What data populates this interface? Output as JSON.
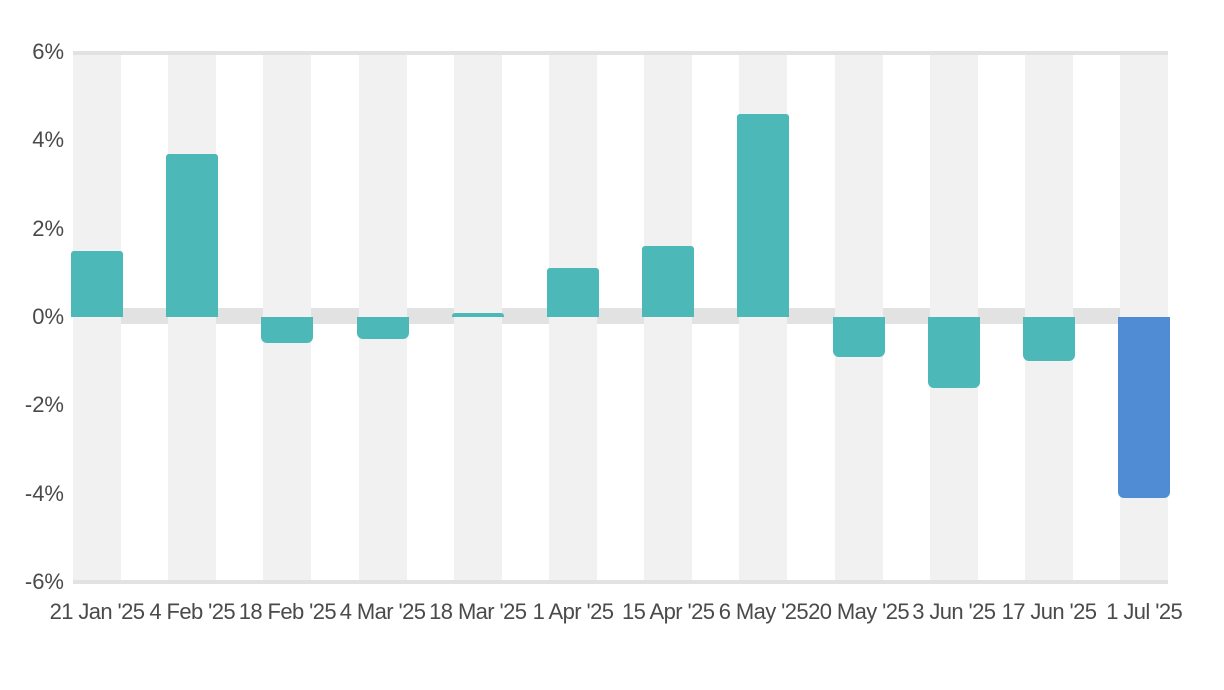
{
  "chart_data": {
    "type": "bar",
    "title": "",
    "xlabel": "",
    "ylabel": "",
    "categories": [
      "21 Jan '25",
      "4 Feb '25",
      "18 Feb '25",
      "4 Mar '25",
      "18 Mar '25",
      "1 Apr '25",
      "15 Apr '25",
      "6 May '25",
      "20 May '25",
      "3 Jun '25",
      "17 Jun '25",
      "1 Jul '25"
    ],
    "values": [
      1.5,
      3.7,
      -0.6,
      -0.5,
      0.1,
      1.1,
      1.6,
      4.6,
      -0.9,
      -1.6,
      -1.0,
      -4.1
    ],
    "value_unit": "%",
    "highlight_index": 11,
    "ylim": [
      -6,
      6
    ],
    "yticks": [
      6,
      4,
      2,
      0,
      -2,
      -4,
      -6
    ],
    "ytick_labels": [
      "6%",
      "4%",
      "2%",
      "0%",
      "-2%",
      "-4%",
      "-6%"
    ],
    "legend": "none",
    "grid": "horizontal lines at +6% and -6%, gray band at 0%, alternating vertical column stripes",
    "colors": {
      "bar": "#4cb8b8",
      "bar_highlight": "#4f8cd3",
      "column_stripe": "#f1f1f1",
      "zero_band": "#e2e2e2",
      "plot_line": "#e2e2e2",
      "label_text": "#4a4a4a",
      "background": "#ffffff"
    }
  }
}
